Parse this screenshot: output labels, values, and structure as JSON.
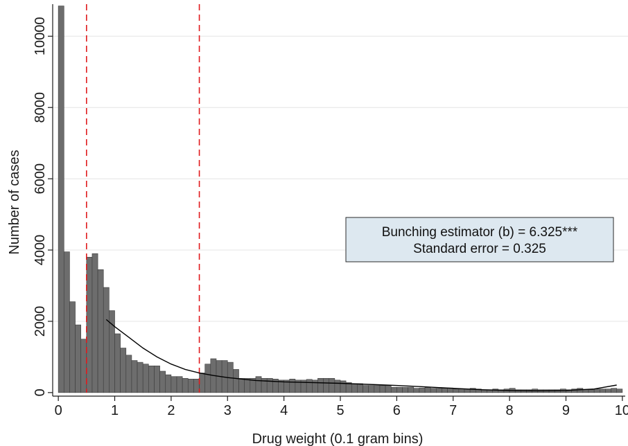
{
  "chart_data": {
    "type": "bar",
    "xlabel": "Drug weight (0.1 gram bins)",
    "ylabel": "Number of cases",
    "xlim": [
      -0.1,
      10.1
    ],
    "ylim": [
      -100,
      10900
    ],
    "x_ticks": [
      0,
      1,
      2,
      3,
      4,
      5,
      6,
      7,
      8,
      9,
      10
    ],
    "y_ticks": [
      0,
      2000,
      4000,
      6000,
      8000,
      10000
    ],
    "bin_width": 0.1,
    "grid": "horizontal",
    "legend": "none",
    "colors": {
      "bars": "#6d6d6d",
      "bar_edge": "#3c3c3c",
      "vlines": "#e0191c",
      "curve": "#000000",
      "annotation_fill": "#dde8f0"
    },
    "bins": {
      "x": [
        0.0,
        0.1,
        0.2,
        0.3,
        0.4,
        0.5,
        0.6,
        0.7,
        0.8,
        0.9,
        1.0,
        1.1,
        1.2,
        1.3,
        1.4,
        1.5,
        1.6,
        1.7,
        1.8,
        1.9,
        2.0,
        2.1,
        2.2,
        2.3,
        2.4,
        2.5,
        2.6,
        2.7,
        2.8,
        2.9,
        3.0,
        3.1,
        3.2,
        3.3,
        3.4,
        3.5,
        3.6,
        3.7,
        3.8,
        3.9,
        4.0,
        4.1,
        4.2,
        4.3,
        4.4,
        4.5,
        4.6,
        4.7,
        4.8,
        4.9,
        5.0,
        5.1,
        5.2,
        5.3,
        5.4,
        5.5,
        5.6,
        5.7,
        5.8,
        5.9,
        6.0,
        6.1,
        6.2,
        6.3,
        6.4,
        6.5,
        6.6,
        6.7,
        6.8,
        6.9,
        7.0,
        7.1,
        7.2,
        7.3,
        7.4,
        7.5,
        7.6,
        7.7,
        7.8,
        7.9,
        8.0,
        8.1,
        8.2,
        8.3,
        8.4,
        8.5,
        8.6,
        8.7,
        8.8,
        8.9,
        9.0,
        9.1,
        9.2,
        9.3,
        9.4,
        9.5,
        9.6,
        9.7,
        9.8,
        9.9
      ],
      "values": [
        10850,
        3950,
        2550,
        1900,
        1500,
        3800,
        3900,
        3450,
        2950,
        2300,
        1650,
        1250,
        1050,
        900,
        850,
        800,
        750,
        750,
        600,
        500,
        450,
        450,
        400,
        380,
        380,
        550,
        800,
        950,
        900,
        900,
        850,
        650,
        400,
        400,
        400,
        450,
        400,
        400,
        380,
        350,
        350,
        380,
        350,
        350,
        370,
        350,
        400,
        400,
        400,
        350,
        330,
        280,
        250,
        250,
        200,
        200,
        200,
        200,
        200,
        150,
        150,
        150,
        150,
        120,
        130,
        150,
        120,
        120,
        120,
        130,
        100,
        100,
        100,
        120,
        100,
        80,
        80,
        100,
        80,
        100,
        120,
        80,
        80,
        80,
        100,
        80,
        80,
        80,
        80,
        100,
        80,
        100,
        120,
        80,
        80,
        100,
        100,
        100,
        120,
        100
      ]
    },
    "vertical_lines": [
      0.5,
      2.5
    ],
    "fitted_curve": {
      "x": [
        0.85,
        1.0,
        1.25,
        1.5,
        1.75,
        2.0,
        2.25,
        2.5,
        2.75,
        3.0,
        3.5,
        4.0,
        4.5,
        5.0,
        5.5,
        6.0,
        6.5,
        7.0,
        7.5,
        8.0,
        8.5,
        9.0,
        9.5,
        9.9
      ],
      "y": [
        2050,
        1850,
        1550,
        1250,
        1000,
        800,
        650,
        550,
        480,
        420,
        340,
        300,
        280,
        260,
        230,
        200,
        160,
        120,
        80,
        60,
        50,
        60,
        100,
        210
      ]
    },
    "annotation": {
      "line1": "Bunching estimator (b) = 6.325***",
      "line2": "Standard error = 0.325"
    }
  }
}
